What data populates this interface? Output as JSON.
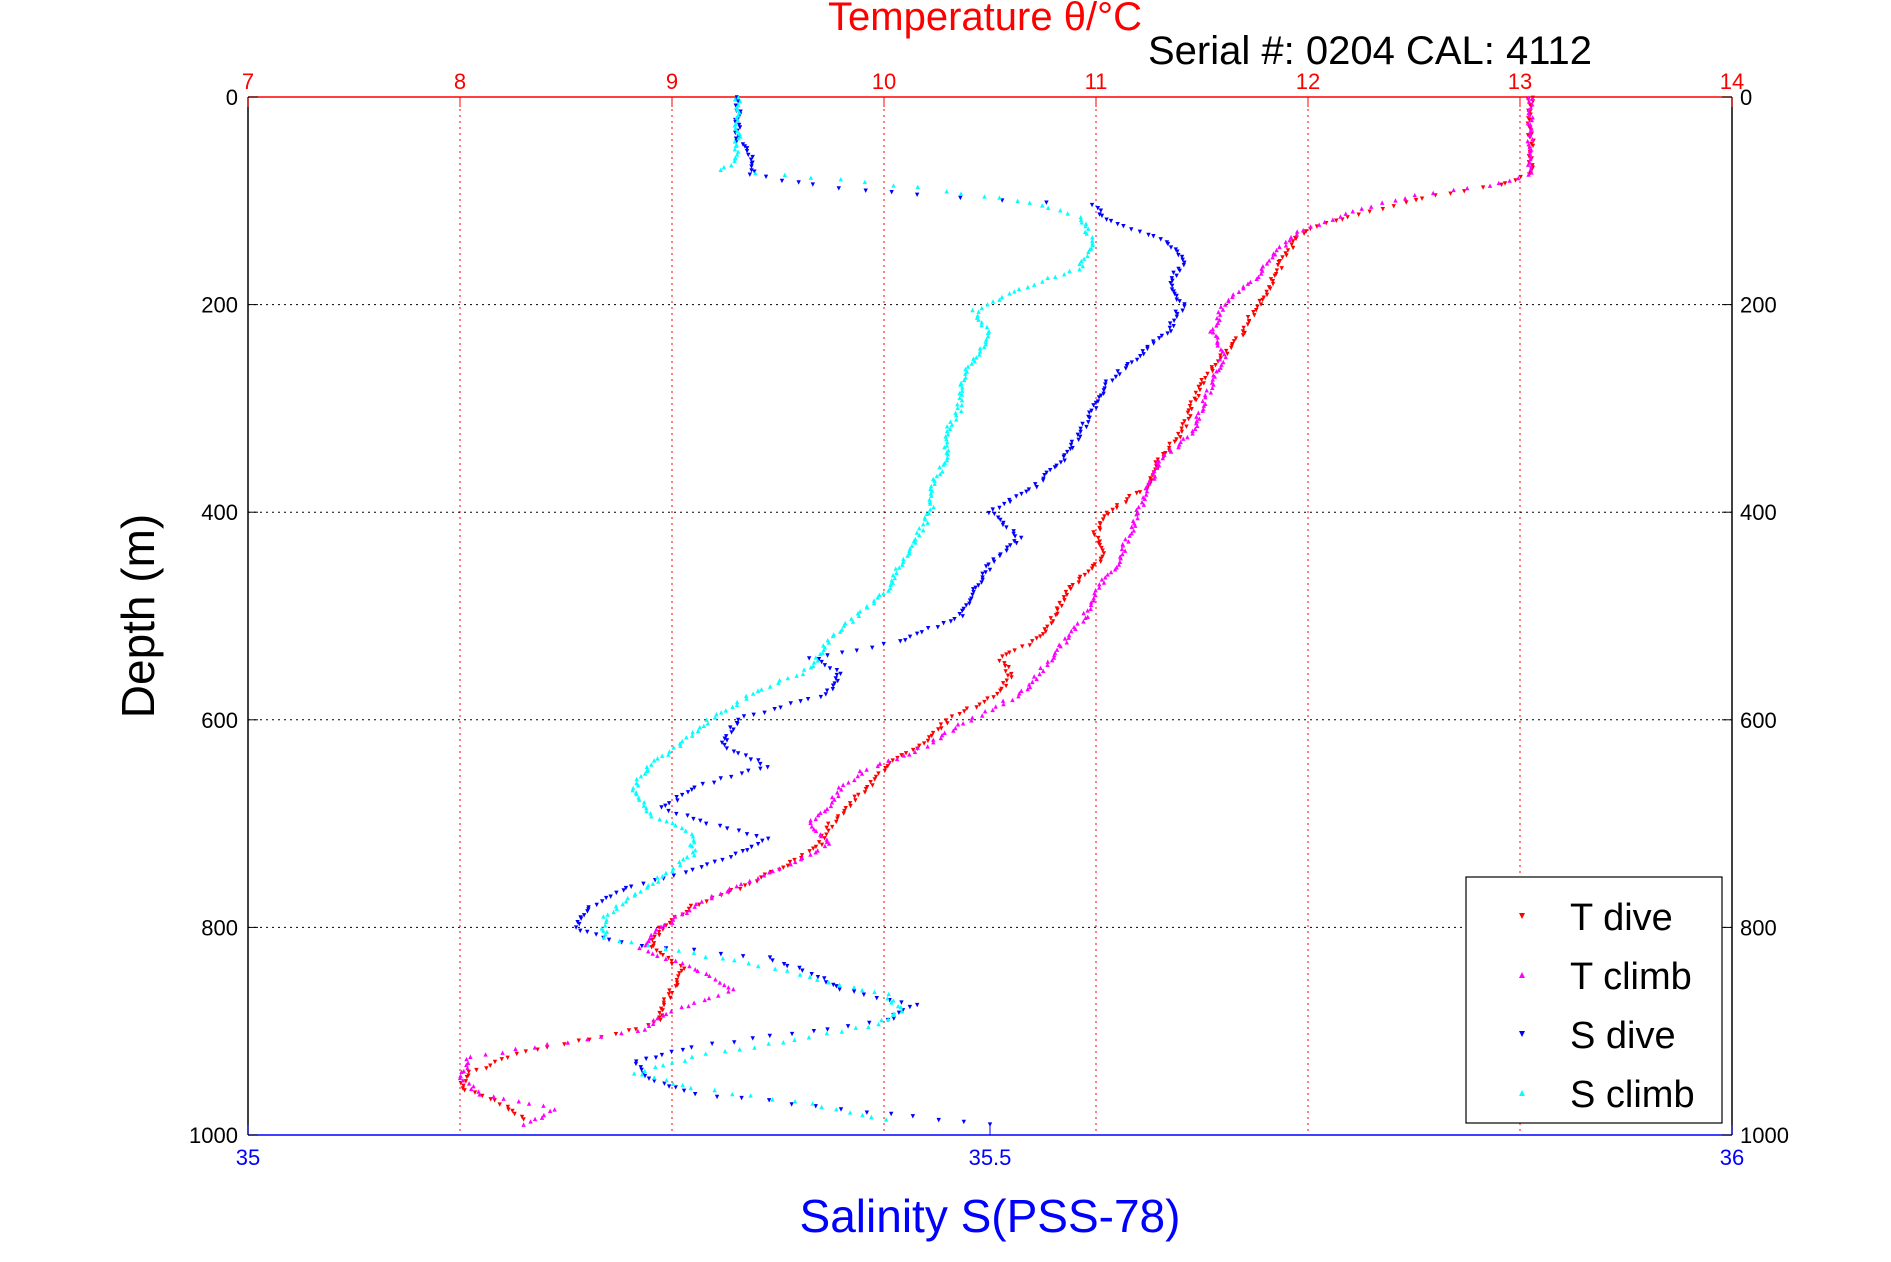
{
  "chart_data": {
    "type": "scatter",
    "title": "Temperature θ/°C",
    "annotation": "Serial #: 0204  CAL: 4112",
    "ylabel": "Depth (m)",
    "xlabel": "Salinity S(PSS-78)",
    "y_axis": {
      "range": [
        0,
        1000
      ],
      "reversed": true,
      "ticks": [
        0,
        200,
        400,
        600,
        800,
        1000
      ]
    },
    "x_top_axis": {
      "quantity": "Temperature",
      "range": [
        7,
        14
      ],
      "ticks": [
        7,
        8,
        9,
        10,
        11,
        12,
        13,
        14
      ],
      "color": "#ff0000"
    },
    "x_bottom_axis": {
      "quantity": "Salinity",
      "range": [
        35,
        36
      ],
      "ticks": [
        35,
        35.5,
        36
      ],
      "tick_labels": [
        "35",
        "35.5",
        "36"
      ],
      "color": "#0000ff"
    },
    "grid": true,
    "legend_position": "bottom-right",
    "series": [
      {
        "name": "T dive",
        "axis": "temperature",
        "color": "#ff0000",
        "marker": "triangle-down",
        "points": [
          [
            0,
            13.05
          ],
          [
            20,
            13.05
          ],
          [
            40,
            13.05
          ],
          [
            60,
            13.05
          ],
          [
            75,
            13.05
          ],
          [
            85,
            12.9
          ],
          [
            95,
            12.6
          ],
          [
            105,
            12.4
          ],
          [
            115,
            12.2
          ],
          [
            125,
            12.05
          ],
          [
            135,
            11.95
          ],
          [
            150,
            11.9
          ],
          [
            170,
            11.85
          ],
          [
            190,
            11.8
          ],
          [
            205,
            11.75
          ],
          [
            225,
            11.7
          ],
          [
            250,
            11.6
          ],
          [
            275,
            11.5
          ],
          [
            300,
            11.45
          ],
          [
            325,
            11.4
          ],
          [
            350,
            11.3
          ],
          [
            375,
            11.25
          ],
          [
            400,
            11.05
          ],
          [
            420,
            11.0
          ],
          [
            440,
            11.05
          ],
          [
            460,
            10.95
          ],
          [
            480,
            10.85
          ],
          [
            500,
            10.8
          ],
          [
            520,
            10.75
          ],
          [
            540,
            10.55
          ],
          [
            560,
            10.6
          ],
          [
            580,
            10.5
          ],
          [
            600,
            10.3
          ],
          [
            620,
            10.2
          ],
          [
            640,
            10.05
          ],
          [
            660,
            9.95
          ],
          [
            680,
            9.85
          ],
          [
            700,
            9.75
          ],
          [
            720,
            9.7
          ],
          [
            740,
            9.55
          ],
          [
            760,
            9.35
          ],
          [
            780,
            9.1
          ],
          [
            800,
            8.95
          ],
          [
            820,
            8.9
          ],
          [
            840,
            9.05
          ],
          [
            860,
            9.0
          ],
          [
            880,
            8.95
          ],
          [
            890,
            8.95
          ],
          [
            900,
            8.8
          ],
          [
            920,
            8.3
          ],
          [
            940,
            8.05
          ],
          [
            955,
            8.0
          ],
          [
            970,
            8.2
          ],
          [
            985,
            8.3
          ]
        ]
      },
      {
        "name": "T climb",
        "axis": "temperature",
        "color": "#ff00ff",
        "marker": "triangle-up",
        "points": [
          [
            0,
            13.05
          ],
          [
            20,
            13.05
          ],
          [
            40,
            13.05
          ],
          [
            60,
            13.05
          ],
          [
            75,
            13.05
          ],
          [
            85,
            12.85
          ],
          [
            95,
            12.5
          ],
          [
            105,
            12.3
          ],
          [
            115,
            12.15
          ],
          [
            130,
            11.95
          ],
          [
            150,
            11.85
          ],
          [
            175,
            11.75
          ],
          [
            200,
            11.6
          ],
          [
            225,
            11.55
          ],
          [
            250,
            11.6
          ],
          [
            275,
            11.55
          ],
          [
            300,
            11.5
          ],
          [
            325,
            11.45
          ],
          [
            350,
            11.3
          ],
          [
            375,
            11.25
          ],
          [
            400,
            11.2
          ],
          [
            425,
            11.15
          ],
          [
            450,
            11.1
          ],
          [
            475,
            11.0
          ],
          [
            500,
            10.95
          ],
          [
            525,
            10.85
          ],
          [
            550,
            10.75
          ],
          [
            575,
            10.65
          ],
          [
            600,
            10.4
          ],
          [
            625,
            10.2
          ],
          [
            650,
            9.9
          ],
          [
            665,
            9.8
          ],
          [
            680,
            9.75
          ],
          [
            700,
            9.65
          ],
          [
            720,
            9.75
          ],
          [
            740,
            9.55
          ],
          [
            760,
            9.3
          ],
          [
            780,
            9.1
          ],
          [
            800,
            8.95
          ],
          [
            820,
            8.85
          ],
          [
            840,
            9.1
          ],
          [
            860,
            9.3
          ],
          [
            880,
            9.0
          ],
          [
            900,
            8.85
          ],
          [
            910,
            8.5
          ],
          [
            925,
            8.05
          ],
          [
            945,
            8.0
          ],
          [
            960,
            8.1
          ],
          [
            975,
            8.45
          ],
          [
            990,
            8.3
          ]
        ]
      },
      {
        "name": "S dive",
        "axis": "salinity",
        "color": "#0000ff",
        "marker": "triangle-down",
        "points": [
          [
            0,
            35.33
          ],
          [
            20,
            35.33
          ],
          [
            40,
            35.33
          ],
          [
            60,
            35.34
          ],
          [
            75,
            35.34
          ],
          [
            85,
            35.38
          ],
          [
            95,
            35.45
          ],
          [
            105,
            35.57
          ],
          [
            120,
            35.58
          ],
          [
            140,
            35.62
          ],
          [
            160,
            35.63
          ],
          [
            180,
            35.62
          ],
          [
            200,
            35.63
          ],
          [
            225,
            35.62
          ],
          [
            250,
            35.6
          ],
          [
            275,
            35.58
          ],
          [
            300,
            35.57
          ],
          [
            325,
            35.56
          ],
          [
            350,
            35.55
          ],
          [
            375,
            35.53
          ],
          [
            400,
            35.5
          ],
          [
            425,
            35.52
          ],
          [
            450,
            35.5
          ],
          [
            475,
            35.49
          ],
          [
            500,
            35.48
          ],
          [
            525,
            35.44
          ],
          [
            540,
            35.38
          ],
          [
            555,
            35.4
          ],
          [
            575,
            35.39
          ],
          [
            600,
            35.33
          ],
          [
            625,
            35.32
          ],
          [
            645,
            35.35
          ],
          [
            665,
            35.3
          ],
          [
            685,
            35.28
          ],
          [
            700,
            35.31
          ],
          [
            715,
            35.35
          ],
          [
            730,
            35.33
          ],
          [
            745,
            35.3
          ],
          [
            760,
            35.26
          ],
          [
            780,
            35.23
          ],
          [
            800,
            35.22
          ],
          [
            815,
            35.25
          ],
          [
            830,
            35.35
          ],
          [
            845,
            35.38
          ],
          [
            860,
            35.4
          ],
          [
            875,
            35.45
          ],
          [
            890,
            35.43
          ],
          [
            900,
            35.38
          ],
          [
            915,
            35.3
          ],
          [
            930,
            35.26
          ],
          [
            945,
            35.27
          ],
          [
            960,
            35.3
          ],
          [
            975,
            35.4
          ],
          [
            990,
            35.5
          ]
        ]
      },
      {
        "name": "S climb",
        "axis": "salinity",
        "color": "#00ffff",
        "marker": "triangle-up",
        "points": [
          [
            0,
            35.33
          ],
          [
            20,
            35.33
          ],
          [
            40,
            35.33
          ],
          [
            60,
            35.33
          ],
          [
            70,
            35.32
          ],
          [
            80,
            35.4
          ],
          [
            90,
            35.47
          ],
          [
            100,
            35.52
          ],
          [
            115,
            35.56
          ],
          [
            140,
            35.57
          ],
          [
            165,
            35.56
          ],
          [
            185,
            35.52
          ],
          [
            205,
            35.49
          ],
          [
            230,
            35.5
          ],
          [
            250,
            35.49
          ],
          [
            275,
            35.48
          ],
          [
            300,
            35.48
          ],
          [
            325,
            35.47
          ],
          [
            350,
            35.47
          ],
          [
            375,
            35.46
          ],
          [
            400,
            35.46
          ],
          [
            425,
            35.45
          ],
          [
            450,
            35.44
          ],
          [
            475,
            35.43
          ],
          [
            500,
            35.41
          ],
          [
            525,
            35.39
          ],
          [
            550,
            35.38
          ],
          [
            575,
            35.34
          ],
          [
            600,
            35.31
          ],
          [
            625,
            35.29
          ],
          [
            645,
            35.27
          ],
          [
            665,
            35.26
          ],
          [
            690,
            35.27
          ],
          [
            710,
            35.3
          ],
          [
            730,
            35.3
          ],
          [
            750,
            35.28
          ],
          [
            770,
            35.26
          ],
          [
            790,
            35.24
          ],
          [
            810,
            35.24
          ],
          [
            830,
            35.32
          ],
          [
            845,
            35.37
          ],
          [
            865,
            35.43
          ],
          [
            880,
            35.44
          ],
          [
            895,
            35.42
          ],
          [
            910,
            35.36
          ],
          [
            925,
            35.3
          ],
          [
            940,
            35.26
          ],
          [
            955,
            35.3
          ],
          [
            970,
            35.38
          ],
          [
            985,
            35.43
          ]
        ]
      }
    ]
  }
}
